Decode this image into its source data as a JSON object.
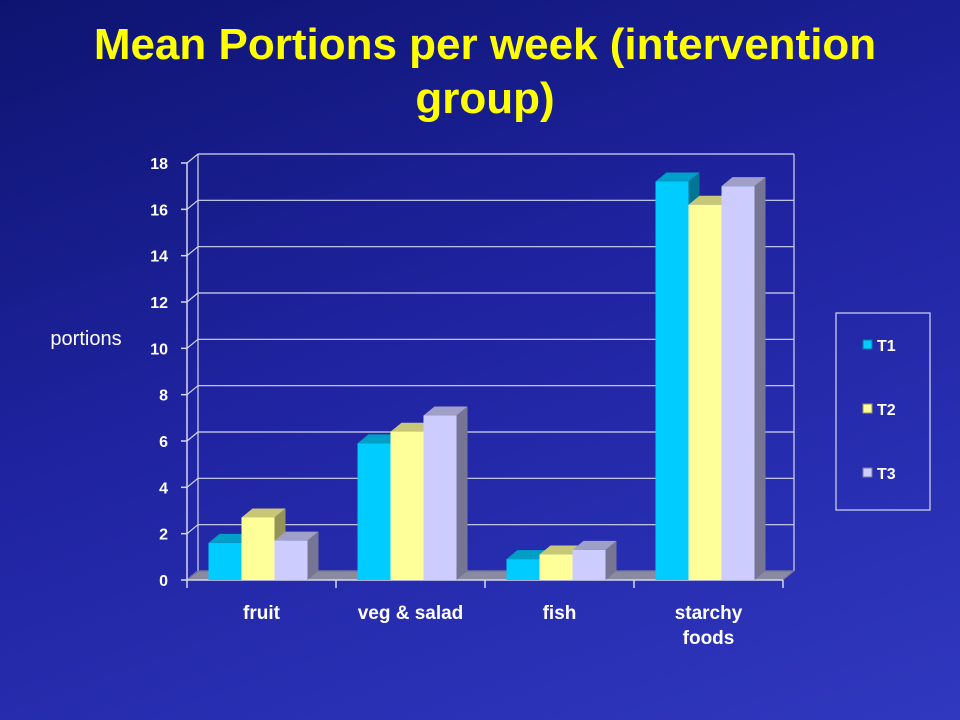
{
  "chart_data": {
    "type": "bar",
    "title": "Mean Portions per week (intervention group)",
    "ylabel": "portions",
    "xlabel": "",
    "ylim": [
      0,
      18
    ],
    "yticks": [
      0,
      2,
      4,
      6,
      8,
      10,
      12,
      14,
      16,
      18
    ],
    "categories": [
      [
        "fruit"
      ],
      [
        "veg & salad"
      ],
      [
        "fish"
      ],
      [
        "starchy",
        "foods"
      ]
    ],
    "series": [
      {
        "name": "T1",
        "values": [
          1.6,
          5.9,
          0.9,
          17.2
        ],
        "color": "#00ccff"
      },
      {
        "name": "T2",
        "values": [
          2.7,
          6.4,
          1.1,
          16.2
        ],
        "color": "#ffff99"
      },
      {
        "name": "T3",
        "values": [
          1.7,
          7.1,
          1.3,
          17.0
        ],
        "color": "#ccccff"
      }
    ],
    "grid": true,
    "legend_position": "right",
    "style": "3d-clustered"
  }
}
